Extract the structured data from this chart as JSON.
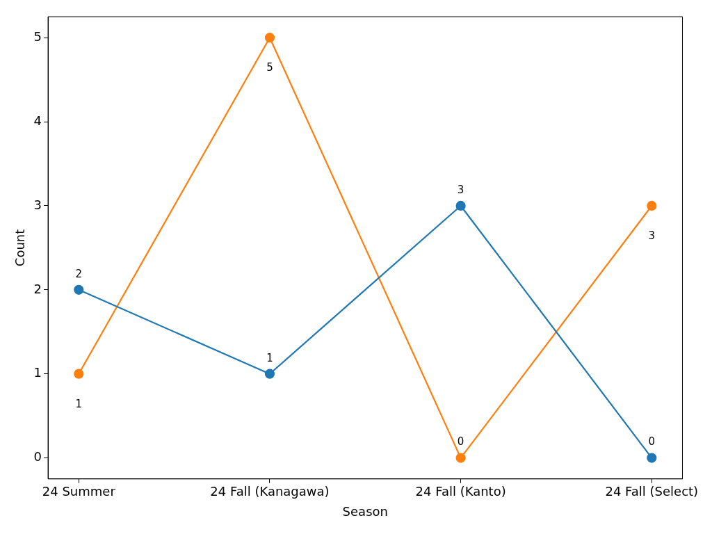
{
  "chart_data": {
    "type": "line",
    "xlabel": "Season",
    "ylabel": "Count",
    "categories": [
      "24 Summer",
      "24 Fall (Kanagawa)",
      "24 Fall (Kanto)",
      "24 Fall (Select)"
    ],
    "series": [
      {
        "color": "#1f77b4",
        "values": [
          2,
          1,
          3,
          0
        ]
      },
      {
        "color": "#ff7f0e",
        "values": [
          1,
          5,
          0,
          3
        ]
      }
    ],
    "ylim": [
      -0.25,
      5.25
    ],
    "yticks": [
      0,
      1,
      2,
      3,
      4,
      5
    ],
    "grid": false,
    "legend": false,
    "marker": "circle",
    "line_style": "solid",
    "data_labels": true
  }
}
